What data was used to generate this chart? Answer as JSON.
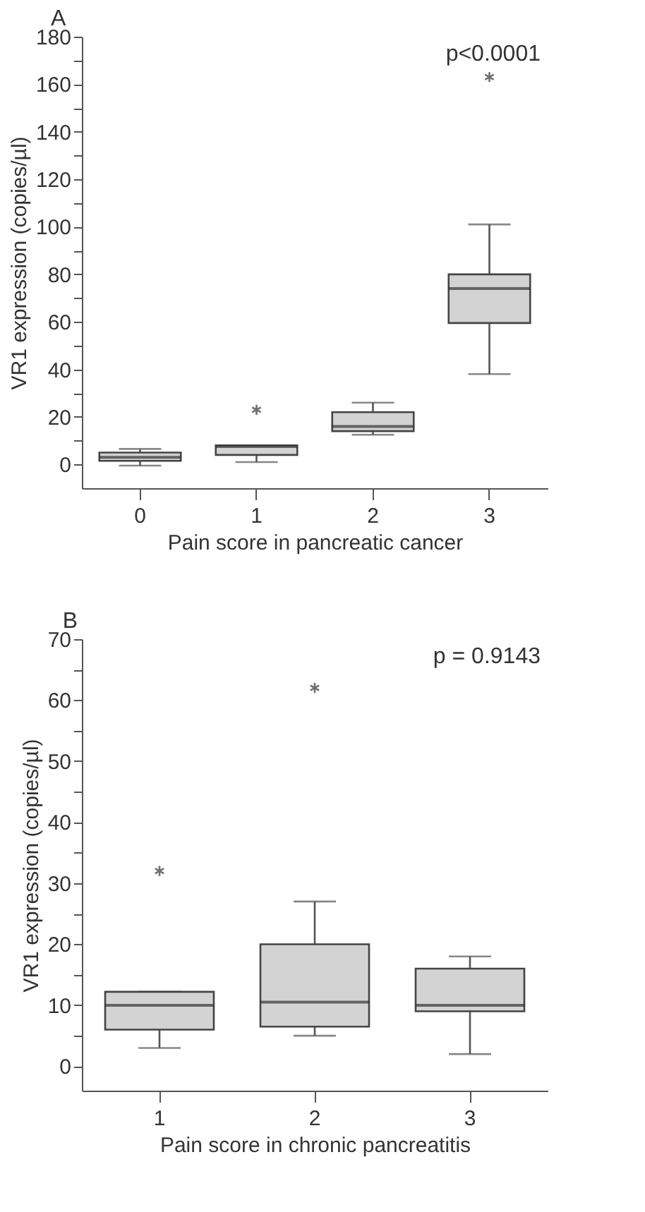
{
  "chart_data": [
    {
      "type": "box",
      "title": "A",
      "xlabel": "Pain score in pancreatic cancer",
      "ylabel": "VR1 expression (copies/µl)",
      "annotations": [
        "p<0.0001"
      ],
      "categories": [
        "0",
        "1",
        "2",
        "3"
      ],
      "ylim": [
        -10,
        180
      ],
      "yticks": [
        0,
        {
          "value": 10,
          "label": null
        },
        20,
        {
          "value": 30,
          "label": null
        },
        40,
        {
          "value": 50,
          "label": null
        },
        60,
        {
          "value": 70,
          "label": null
        },
        80,
        {
          "value": 90,
          "label": null
        },
        100,
        {
          "value": 110,
          "label": null
        },
        120,
        {
          "value": 130,
          "label": null
        },
        140,
        {
          "value": 150,
          "label": null
        },
        160,
        {
          "value": 170,
          "label": null
        },
        180
      ],
      "grid": false,
      "marker": "star",
      "series": [
        {
          "color": "#d3d3d3",
          "boxes": [
            {
              "low": -0.5,
              "q1": 1.5,
              "median": 3,
              "q3": 5,
              "high": 6.5
            },
            {
              "low": 1,
              "q1": 4,
              "median": 7.5,
              "q3": 8,
              "high": 8,
              "outliers": [
                23
              ]
            },
            {
              "low": 12.5,
              "q1": 14,
              "median": 16,
              "q3": 22,
              "high": 26
            },
            {
              "low": 38,
              "q1": 59.5,
              "median": 74,
              "q3": 80,
              "high": 101,
              "outliers": [
                163
              ]
            }
          ]
        }
      ]
    },
    {
      "type": "box",
      "title": "B",
      "xlabel": "Pain score in chronic pancreatitis",
      "ylabel": "VR1 expression (copies/µl)",
      "annotations": [
        "p = 0.9143"
      ],
      "categories": [
        "1",
        "2",
        "3"
      ],
      "ylim": [
        -4,
        70
      ],
      "yticks": [
        0,
        {
          "value": 5,
          "label": null
        },
        10,
        {
          "value": 15,
          "label": null
        },
        20,
        {
          "value": 25,
          "label": null
        },
        30,
        {
          "value": 35,
          "label": null
        },
        40,
        {
          "value": 45,
          "label": null
        },
        50,
        {
          "value": 55,
          "label": null
        },
        60,
        {
          "value": 65,
          "label": null
        },
        70
      ],
      "grid": false,
      "marker": "star",
      "series": [
        {
          "color": "#d3d3d3",
          "boxes": [
            {
              "low": 3,
              "q1": 6,
              "median": 10,
              "q3": 12.2,
              "high": 12.2,
              "outliers": [
                32
              ]
            },
            {
              "low": 5,
              "q1": 6.5,
              "median": 10.5,
              "q3": 20,
              "high": 27,
              "outliers": [
                62
              ]
            },
            {
              "low": 2,
              "q1": 9,
              "median": 10,
              "q3": 16,
              "high": 18
            }
          ]
        }
      ]
    }
  ]
}
